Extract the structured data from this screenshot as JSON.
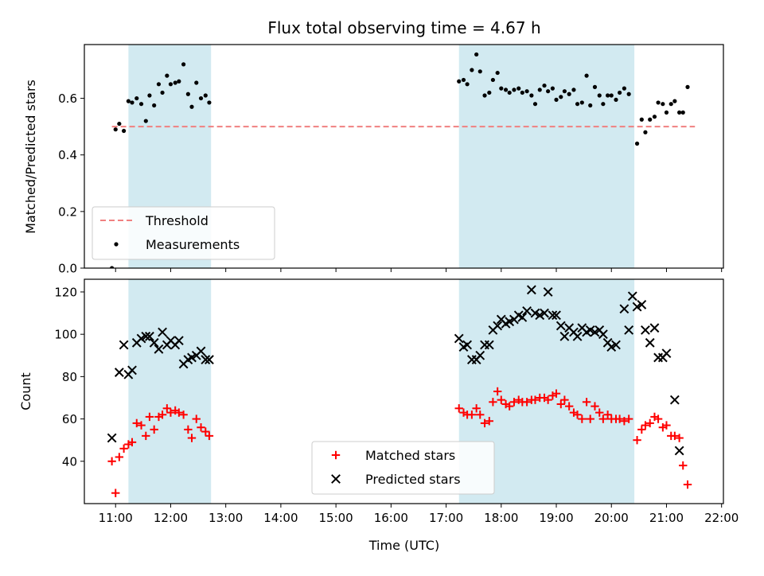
{
  "chart_data": {
    "title": "Flux total observing time = 4.67 h",
    "xlabel": "Time (UTC)",
    "x_ticks": [
      "11:00",
      "12:00",
      "13:00",
      "14:00",
      "15:00",
      "16:00",
      "17:00",
      "18:00",
      "19:00",
      "20:00",
      "21:00",
      "22:00"
    ],
    "highlight_spans": [
      [
        "11:14",
        "12:44"
      ],
      [
        "17:14",
        "20:25"
      ]
    ],
    "highlight_color": "#add8e6",
    "panels": [
      {
        "type": "scatter",
        "ylabel": "Matched/Predicted stars",
        "ylim": [
          0,
          0.79
        ],
        "y_ticks": [
          "0.0",
          "0.2",
          "0.4",
          "0.6"
        ],
        "threshold": {
          "name": "Threshold",
          "value": 0.5,
          "x_range": [
            "10:56",
            "21:31"
          ],
          "color": "#f08080"
        },
        "legend": {
          "position": "lower-left",
          "entries": [
            "Threshold",
            "Measurements"
          ]
        },
        "series": [
          {
            "name": "Measurements",
            "color": "#000000",
            "points": [
              [
                "10:56",
                0.0
              ],
              [
                "11:00",
                0.49
              ],
              [
                "11:04",
                0.51
              ],
              [
                "11:09",
                0.485
              ],
              [
                "11:14",
                0.59
              ],
              [
                "11:18",
                0.585
              ],
              [
                "11:23",
                0.6
              ],
              [
                "11:28",
                0.58
              ],
              [
                "11:33",
                0.52
              ],
              [
                "11:37",
                0.61
              ],
              [
                "11:42",
                0.575
              ],
              [
                "11:47",
                0.65
              ],
              [
                "11:51",
                0.62
              ],
              [
                "11:56",
                0.68
              ],
              [
                "12:00",
                0.65
              ],
              [
                "12:05",
                0.655
              ],
              [
                "12:09",
                0.66
              ],
              [
                "12:14",
                0.72
              ],
              [
                "12:19",
                0.615
              ],
              [
                "12:23",
                0.57
              ],
              [
                "12:28",
                0.655
              ],
              [
                "12:33",
                0.6
              ],
              [
                "12:38",
                0.61
              ],
              [
                "12:42",
                0.585
              ],
              [
                "17:14",
                0.66
              ],
              [
                "17:19",
                0.665
              ],
              [
                "17:23",
                0.65
              ],
              [
                "17:28",
                0.7
              ],
              [
                "17:33",
                0.755
              ],
              [
                "17:37",
                0.695
              ],
              [
                "17:42",
                0.61
              ],
              [
                "17:47",
                0.62
              ],
              [
                "17:51",
                0.665
              ],
              [
                "17:56",
                0.69
              ],
              [
                "18:00",
                0.635
              ],
              [
                "18:05",
                0.63
              ],
              [
                "18:09",
                0.62
              ],
              [
                "18:14",
                0.63
              ],
              [
                "18:19",
                0.635
              ],
              [
                "18:23",
                0.62
              ],
              [
                "18:28",
                0.625
              ],
              [
                "18:33",
                0.61
              ],
              [
                "18:37",
                0.58
              ],
              [
                "18:42",
                0.63
              ],
              [
                "18:47",
                0.645
              ],
              [
                "18:51",
                0.625
              ],
              [
                "18:56",
                0.635
              ],
              [
                "19:00",
                0.595
              ],
              [
                "19:05",
                0.605
              ],
              [
                "19:09",
                0.625
              ],
              [
                "19:14",
                0.615
              ],
              [
                "19:19",
                0.63
              ],
              [
                "19:23",
                0.58
              ],
              [
                "19:28",
                0.585
              ],
              [
                "19:33",
                0.68
              ],
              [
                "19:37",
                0.575
              ],
              [
                "19:42",
                0.64
              ],
              [
                "19:47",
                0.61
              ],
              [
                "19:51",
                0.58
              ],
              [
                "19:56",
                0.61
              ],
              [
                "20:00",
                0.61
              ],
              [
                "20:05",
                0.595
              ],
              [
                "20:09",
                0.62
              ],
              [
                "20:14",
                0.635
              ],
              [
                "20:19",
                0.615
              ],
              [
                "20:28",
                0.44
              ],
              [
                "20:33",
                0.525
              ],
              [
                "20:37",
                0.48
              ],
              [
                "20:42",
                0.525
              ],
              [
                "20:47",
                0.535
              ],
              [
                "20:51",
                0.585
              ],
              [
                "20:56",
                0.58
              ],
              [
                "21:00",
                0.55
              ],
              [
                "21:05",
                0.58
              ],
              [
                "21:09",
                0.59
              ],
              [
                "21:14",
                0.55
              ],
              [
                "21:18",
                0.55
              ],
              [
                "21:23",
                0.64
              ]
            ]
          }
        ]
      },
      {
        "type": "scatter",
        "ylabel": "Count",
        "ylim": [
          20,
          126
        ],
        "y_ticks": [
          "40",
          "60",
          "80",
          "100",
          "120"
        ],
        "legend": {
          "position": "bottom-center",
          "entries": [
            "Matched stars",
            "Predicted stars"
          ]
        },
        "series": [
          {
            "name": "Matched stars",
            "marker": "+",
            "color": "#ff0000",
            "points": [
              [
                "10:56",
                40
              ],
              [
                "11:00",
                25
              ],
              [
                "11:04",
                42
              ],
              [
                "11:09",
                46
              ],
              [
                "11:14",
                48
              ],
              [
                "11:18",
                49
              ],
              [
                "11:23",
                58
              ],
              [
                "11:28",
                57
              ],
              [
                "11:33",
                52
              ],
              [
                "11:37",
                61
              ],
              [
                "11:42",
                55
              ],
              [
                "11:47",
                61
              ],
              [
                "11:51",
                62
              ],
              [
                "11:56",
                65
              ],
              [
                "12:00",
                63
              ],
              [
                "12:05",
                64
              ],
              [
                "12:09",
                63
              ],
              [
                "12:14",
                62
              ],
              [
                "12:19",
                55
              ],
              [
                "12:23",
                51
              ],
              [
                "12:28",
                60
              ],
              [
                "12:33",
                56
              ],
              [
                "12:38",
                54
              ],
              [
                "12:42",
                52
              ],
              [
                "17:14",
                65
              ],
              [
                "17:19",
                63
              ],
              [
                "17:23",
                62
              ],
              [
                "17:28",
                62
              ],
              [
                "17:33",
                65
              ],
              [
                "17:37",
                62
              ],
              [
                "17:42",
                58
              ],
              [
                "17:47",
                59
              ],
              [
                "17:51",
                68
              ],
              [
                "17:56",
                73
              ],
              [
                "18:00",
                69
              ],
              [
                "18:05",
                67
              ],
              [
                "18:09",
                66
              ],
              [
                "18:14",
                68
              ],
              [
                "18:19",
                69
              ],
              [
                "18:23",
                68
              ],
              [
                "18:28",
                68
              ],
              [
                "18:33",
                69
              ],
              [
                "18:37",
                69
              ],
              [
                "18:42",
                70
              ],
              [
                "18:47",
                70
              ],
              [
                "18:51",
                69
              ],
              [
                "18:56",
                71
              ],
              [
                "19:00",
                72
              ],
              [
                "19:05",
                67
              ],
              [
                "19:09",
                69
              ],
              [
                "19:14",
                66
              ],
              [
                "19:19",
                63
              ],
              [
                "19:23",
                62
              ],
              [
                "19:28",
                60
              ],
              [
                "19:33",
                68
              ],
              [
                "19:37",
                60
              ],
              [
                "19:42",
                66
              ],
              [
                "19:47",
                63
              ],
              [
                "19:51",
                60
              ],
              [
                "19:56",
                62
              ],
              [
                "20:00",
                60
              ],
              [
                "20:05",
                60
              ],
              [
                "20:09",
                60
              ],
              [
                "20:14",
                59
              ],
              [
                "20:19",
                60
              ],
              [
                "20:28",
                50
              ],
              [
                "20:33",
                55
              ],
              [
                "20:37",
                57
              ],
              [
                "20:42",
                58
              ],
              [
                "20:47",
                61
              ],
              [
                "20:51",
                60
              ],
              [
                "20:56",
                56
              ],
              [
                "21:00",
                57
              ],
              [
                "21:05",
                52
              ],
              [
                "21:09",
                52
              ],
              [
                "21:14",
                51
              ],
              [
                "21:18",
                38
              ],
              [
                "21:23",
                29
              ]
            ]
          },
          {
            "name": "Predicted stars",
            "marker": "x",
            "color": "#000000",
            "points": [
              [
                "10:56",
                51
              ],
              [
                "11:04",
                82
              ],
              [
                "11:09",
                95
              ],
              [
                "11:14",
                81
              ],
              [
                "11:18",
                83
              ],
              [
                "11:23",
                96
              ],
              [
                "11:28",
                98
              ],
              [
                "11:33",
                99
              ],
              [
                "11:37",
                99
              ],
              [
                "11:42",
                96
              ],
              [
                "11:47",
                93
              ],
              [
                "11:51",
                101
              ],
              [
                "11:56",
                95
              ],
              [
                "12:00",
                97
              ],
              [
                "12:05",
                95
              ],
              [
                "12:09",
                97
              ],
              [
                "12:14",
                86
              ],
              [
                "12:19",
                88
              ],
              [
                "12:23",
                89
              ],
              [
                "12:28",
                90
              ],
              [
                "12:33",
                92
              ],
              [
                "12:38",
                88
              ],
              [
                "12:42",
                88
              ],
              [
                "17:14",
                98
              ],
              [
                "17:19",
                94
              ],
              [
                "17:23",
                95
              ],
              [
                "17:28",
                88
              ],
              [
                "17:33",
                88
              ],
              [
                "17:37",
                90
              ],
              [
                "17:42",
                95
              ],
              [
                "17:47",
                95
              ],
              [
                "17:51",
                102
              ],
              [
                "17:56",
                104
              ],
              [
                "18:00",
                107
              ],
              [
                "18:05",
                105
              ],
              [
                "18:09",
                106
              ],
              [
                "18:14",
                107
              ],
              [
                "18:19",
                109
              ],
              [
                "18:23",
                108
              ],
              [
                "18:28",
                111
              ],
              [
                "18:33",
                121
              ],
              [
                "18:37",
                110
              ],
              [
                "18:42",
                109
              ],
              [
                "18:47",
                110
              ],
              [
                "18:51",
                120
              ],
              [
                "18:56",
                109
              ],
              [
                "19:00",
                109
              ],
              [
                "19:05",
                104
              ],
              [
                "19:09",
                99
              ],
              [
                "19:14",
                103
              ],
              [
                "19:19",
                101
              ],
              [
                "19:23",
                99
              ],
              [
                "19:28",
                103
              ],
              [
                "19:33",
                101
              ],
              [
                "19:37",
                102
              ],
              [
                "19:42",
                101
              ],
              [
                "19:47",
                102
              ],
              [
                "19:51",
                100
              ],
              [
                "19:56",
                96
              ],
              [
                "20:00",
                94
              ],
              [
                "20:05",
                95
              ],
              [
                "20:14",
                112
              ],
              [
                "20:19",
                102
              ],
              [
                "20:23",
                118
              ],
              [
                "20:28",
                113
              ],
              [
                "20:33",
                114
              ],
              [
                "20:37",
                102
              ],
              [
                "20:42",
                96
              ],
              [
                "20:47",
                103
              ],
              [
                "20:51",
                89
              ],
              [
                "20:56",
                89
              ],
              [
                "21:00",
                91
              ],
              [
                "21:09",
                69
              ],
              [
                "21:14",
                45
              ]
            ]
          }
        ]
      }
    ]
  }
}
